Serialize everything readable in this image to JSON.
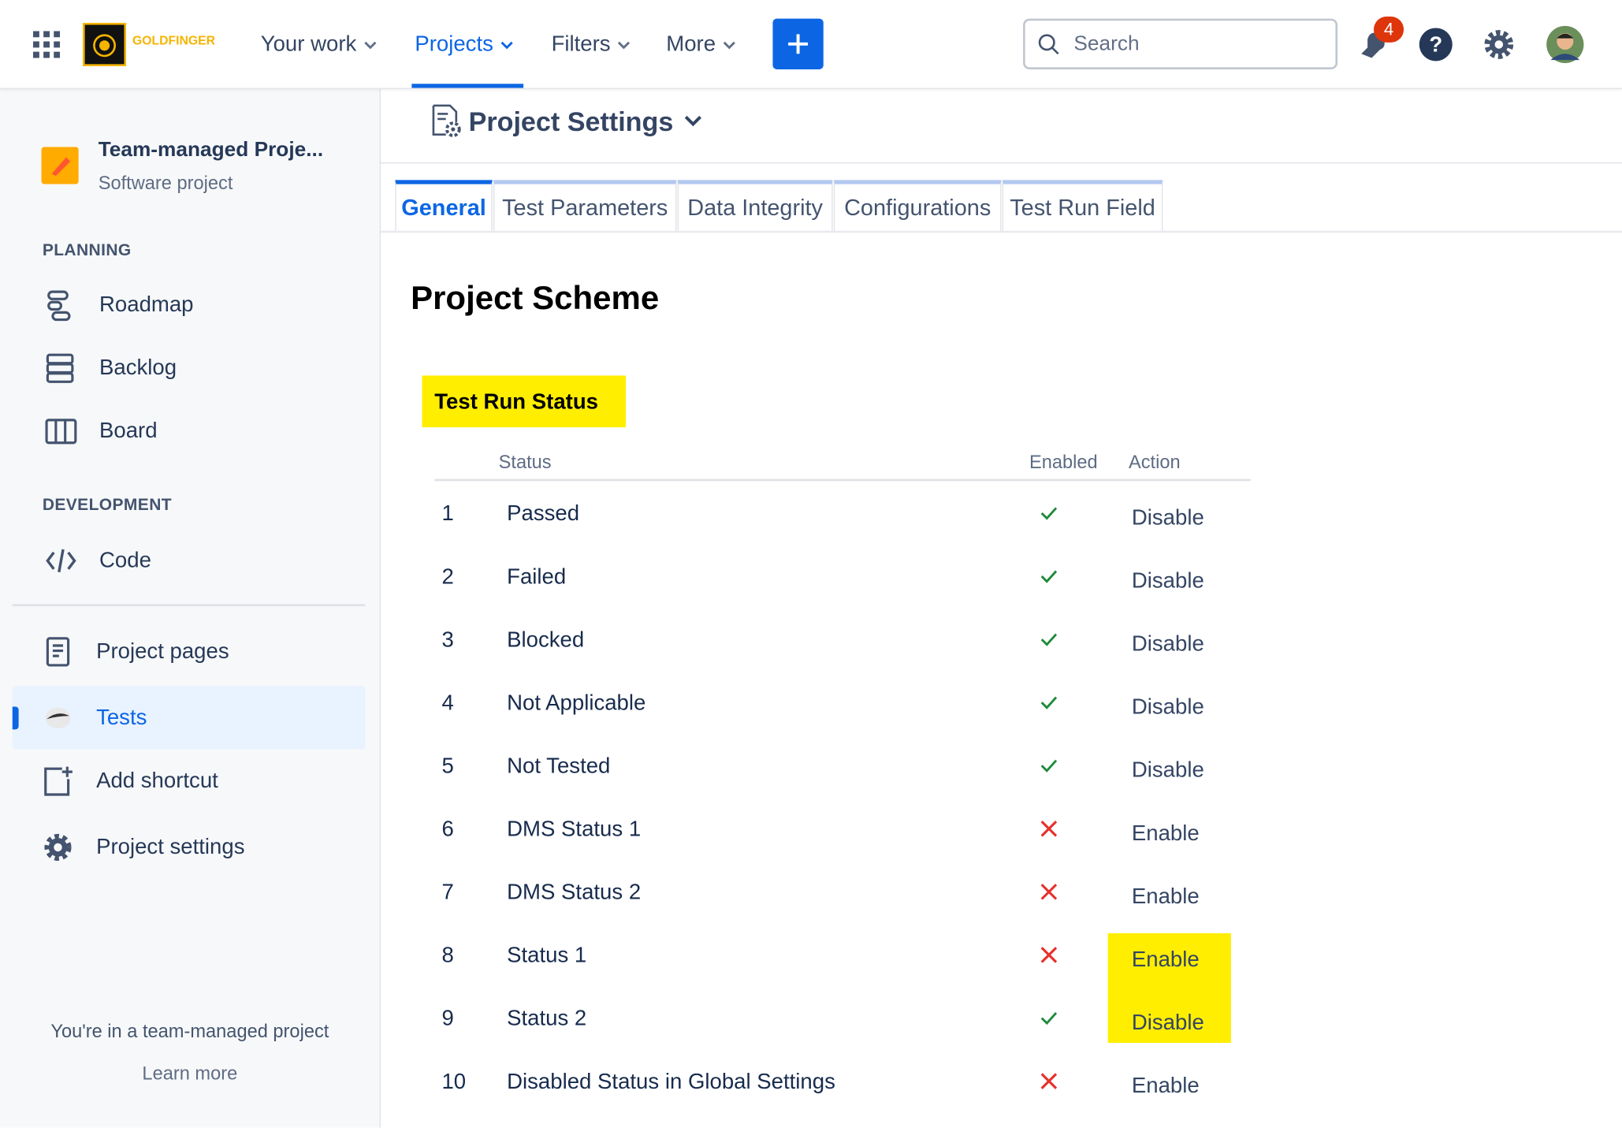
{
  "nav": {
    "brand": "GOLDFINGER",
    "items": [
      "Your work",
      "Projects",
      "Filters",
      "More"
    ],
    "active_item": 1,
    "search_placeholder": "Search",
    "notification_count": 4
  },
  "sidebar": {
    "project_name": "Team-managed Proje...",
    "project_type": "Software project",
    "planning_heading": "PLANNING",
    "planning": [
      "Roadmap",
      "Backlog",
      "Board"
    ],
    "development_heading": "DEVELOPMENT",
    "development": [
      "Code"
    ],
    "links": [
      "Project pages",
      "Tests",
      "Add shortcut",
      "Project settings"
    ],
    "active_link": 1,
    "footer_text": "You're in a team-managed project",
    "footer_link": "Learn more"
  },
  "header": {
    "title": "Project Settings"
  },
  "tabs": {
    "items": [
      "General",
      "Test Parameters",
      "Data Integrity",
      "Configurations",
      "Test Run Field"
    ],
    "active": 0
  },
  "section_title": "Project Scheme",
  "table": {
    "title": "Test Run Status",
    "columns": [
      "Status",
      "Enabled",
      "Action"
    ],
    "rows": [
      {
        "index": 1,
        "status": "Passed",
        "enabled": true,
        "action": "Disable"
      },
      {
        "index": 2,
        "status": "Failed",
        "enabled": true,
        "action": "Disable"
      },
      {
        "index": 3,
        "status": "Blocked",
        "enabled": true,
        "action": "Disable"
      },
      {
        "index": 4,
        "status": "Not Applicable",
        "enabled": true,
        "action": "Disable"
      },
      {
        "index": 5,
        "status": "Not Tested",
        "enabled": true,
        "action": "Disable"
      },
      {
        "index": 6,
        "status": "DMS Status 1",
        "enabled": false,
        "action": "Enable"
      },
      {
        "index": 7,
        "status": "DMS Status 2",
        "enabled": false,
        "action": "Enable"
      },
      {
        "index": 8,
        "status": "Status 1",
        "enabled": false,
        "action": "Enable",
        "highlighted": true
      },
      {
        "index": 9,
        "status": "Status 2",
        "enabled": true,
        "action": "Disable",
        "highlighted": true
      },
      {
        "index": 10,
        "status": "Disabled Status in Global Settings",
        "enabled": false,
        "action": "Enable"
      }
    ]
  }
}
